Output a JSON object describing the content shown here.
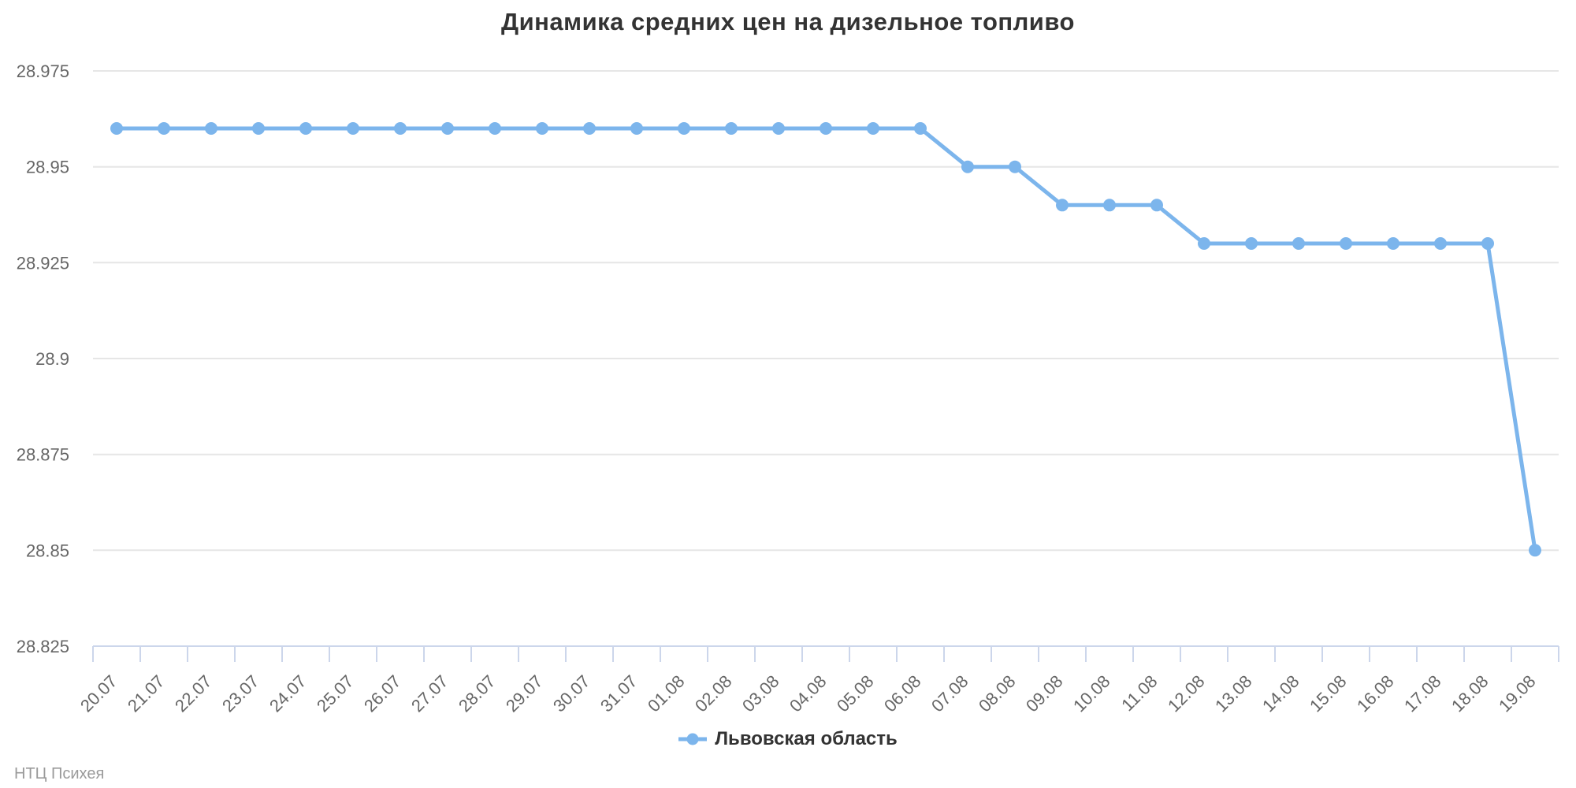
{
  "header": {
    "title": "Динамика средних цен на дизельное топливо"
  },
  "legend": {
    "items": [
      {
        "label": "Львовская область",
        "color": "#7cb5ec"
      }
    ]
  },
  "credits": {
    "text": "НТЦ Психея"
  },
  "colors": {
    "series": "#7cb5ec",
    "grid": "#e6e6e6",
    "axis": "#ccd6eb",
    "tick": "#ccd6eb",
    "axis_label": "#666666",
    "title": "#333333",
    "legend_text": "#333333",
    "credits": "#9a9a9a",
    "background": "#ffffff"
  },
  "chart_data": {
    "type": "line",
    "title": "Динамика средних цен на дизельное топливо",
    "xlabel": "",
    "ylabel": "",
    "categories": [
      "20.07",
      "21.07",
      "22.07",
      "23.07",
      "24.07",
      "25.07",
      "26.07",
      "27.07",
      "28.07",
      "29.07",
      "30.07",
      "31.07",
      "01.08",
      "02.08",
      "03.08",
      "04.08",
      "05.08",
      "06.08",
      "07.08",
      "08.08",
      "09.08",
      "10.08",
      "11.08",
      "12.08",
      "13.08",
      "14.08",
      "15.08",
      "16.08",
      "17.08",
      "18.08",
      "19.08"
    ],
    "series": [
      {
        "name": "Львовская область",
        "color": "#7cb5ec",
        "values": [
          28.96,
          28.96,
          28.96,
          28.96,
          28.96,
          28.96,
          28.96,
          28.96,
          28.96,
          28.96,
          28.96,
          28.96,
          28.96,
          28.96,
          28.96,
          28.96,
          28.96,
          28.96,
          28.95,
          28.95,
          28.94,
          28.94,
          28.94,
          28.93,
          28.93,
          28.93,
          28.93,
          28.93,
          28.93,
          28.93,
          28.85
        ]
      }
    ],
    "ylim": [
      28.825,
      28.975
    ],
    "y_ticks": [
      28.825,
      28.85,
      28.875,
      28.9,
      28.925,
      28.95,
      28.975
    ],
    "y_tick_labels": [
      "28.825",
      "28.85",
      "28.875",
      "28.9",
      "28.925",
      "28.95",
      "28.975"
    ],
    "grid": true,
    "x_tick_marks": true,
    "x_label_rotation": -45,
    "legend_position": "bottom",
    "marker": "circle"
  }
}
